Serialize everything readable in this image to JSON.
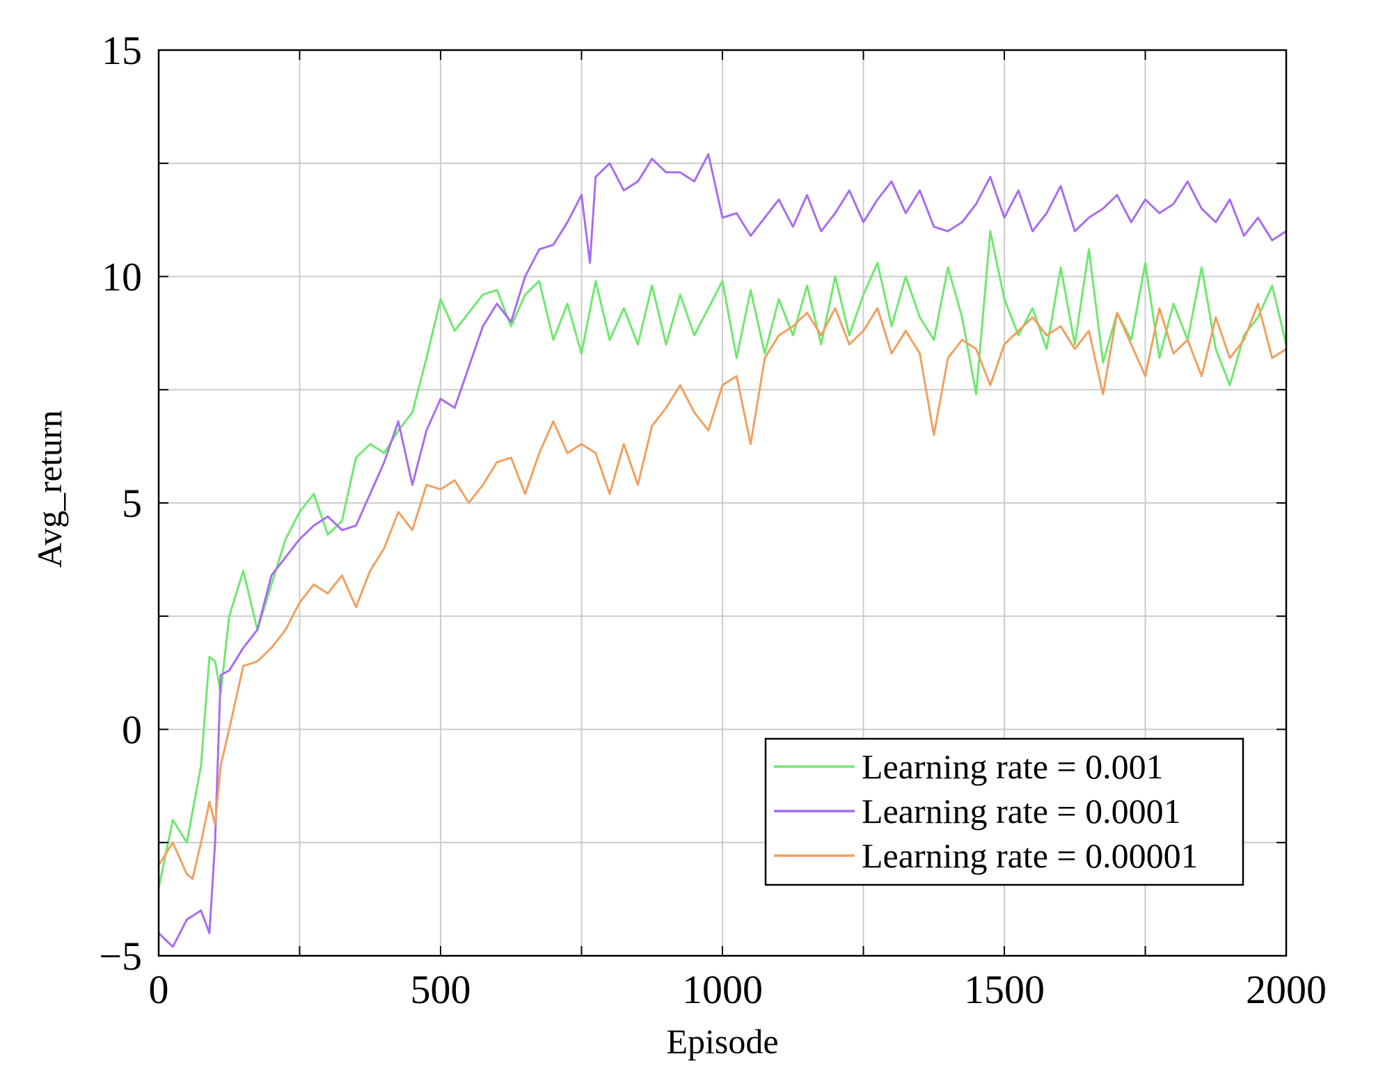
{
  "chart_data": {
    "type": "line",
    "title": "",
    "xlabel": "Episode",
    "ylabel": "Avg_return",
    "xlim": [
      0,
      2000
    ],
    "ylim": [
      -5,
      15
    ],
    "xticks": [
      0,
      500,
      1000,
      1500,
      2000
    ],
    "xtick_labels": [
      "0",
      "500",
      "1000",
      "1500",
      "2000"
    ],
    "yticks": [
      -5,
      0,
      5,
      10,
      15
    ],
    "ytick_labels": [
      "−5",
      "0",
      "5",
      "10",
      "15"
    ],
    "grid": true,
    "legend_position": "bottom-right",
    "series": [
      {
        "name": "Learning rate = 0.001",
        "color": "#6ee86e",
        "x": [
          0,
          25,
          50,
          75,
          90,
          100,
          110,
          125,
          150,
          175,
          200,
          225,
          250,
          275,
          300,
          325,
          350,
          375,
          400,
          425,
          450,
          475,
          500,
          525,
          550,
          575,
          600,
          625,
          650,
          675,
          700,
          725,
          750,
          775,
          800,
          825,
          850,
          875,
          900,
          925,
          950,
          975,
          1000,
          1025,
          1050,
          1075,
          1100,
          1125,
          1150,
          1175,
          1200,
          1225,
          1250,
          1275,
          1300,
          1325,
          1350,
          1375,
          1400,
          1425,
          1450,
          1475,
          1500,
          1525,
          1550,
          1575,
          1600,
          1625,
          1650,
          1675,
          1700,
          1725,
          1750,
          1775,
          1800,
          1825,
          1850,
          1875,
          1900,
          1925,
          1950,
          1975,
          2000
        ],
        "y": [
          -3.5,
          -2,
          -2.5,
          -0.8,
          1.6,
          1.5,
          0.8,
          2.5,
          3.5,
          2.2,
          3.2,
          4.2,
          4.8,
          5.2,
          4.3,
          4.6,
          6,
          6.3,
          6.1,
          6.6,
          7,
          8.2,
          9.5,
          8.8,
          9.2,
          9.6,
          9.7,
          8.9,
          9.6,
          9.9,
          8.6,
          9.4,
          8.3,
          9.9,
          8.6,
          9.3,
          8.5,
          9.8,
          8.5,
          9.6,
          8.7,
          9.3,
          9.9,
          8.2,
          9.7,
          8.3,
          9.5,
          8.7,
          9.8,
          8.5,
          10,
          8.7,
          9.6,
          10.3,
          8.9,
          10,
          9.1,
          8.6,
          10.2,
          9.1,
          7.4,
          11,
          9.5,
          8.7,
          9.3,
          8.4,
          10.2,
          8.5,
          10.6,
          8.1,
          9.2,
          8.6,
          10.3,
          8.2,
          9.4,
          8.6,
          10.2,
          8.4,
          7.6,
          8.7,
          9.1,
          9.8,
          8.5
        ]
      },
      {
        "name": "Learning rate = 0.0001",
        "color": "#a86cf0",
        "x": [
          0,
          25,
          50,
          75,
          90,
          100,
          110,
          125,
          150,
          175,
          200,
          225,
          250,
          275,
          300,
          325,
          350,
          375,
          400,
          425,
          450,
          475,
          500,
          525,
          550,
          575,
          600,
          625,
          650,
          675,
          700,
          725,
          750,
          765,
          775,
          800,
          825,
          850,
          875,
          900,
          925,
          950,
          975,
          1000,
          1025,
          1050,
          1075,
          1100,
          1125,
          1150,
          1175,
          1200,
          1225,
          1250,
          1275,
          1300,
          1325,
          1350,
          1375,
          1400,
          1425,
          1450,
          1475,
          1500,
          1525,
          1550,
          1575,
          1600,
          1625,
          1650,
          1675,
          1700,
          1725,
          1750,
          1775,
          1800,
          1825,
          1850,
          1875,
          1900,
          1925,
          1950,
          1975,
          2000
        ],
        "y": [
          -4.5,
          -4.8,
          -4.2,
          -4,
          -4.5,
          -2.5,
          1.2,
          1.3,
          1.8,
          2.2,
          3.4,
          3.8,
          4.2,
          4.5,
          4.7,
          4.4,
          4.5,
          5.2,
          5.9,
          6.8,
          5.4,
          6.6,
          7.3,
          7.1,
          8,
          8.9,
          9.4,
          9,
          10,
          10.6,
          10.7,
          11.2,
          11.8,
          10.3,
          12.2,
          12.5,
          11.9,
          12.1,
          12.6,
          12.3,
          12.3,
          12.1,
          12.7,
          11.3,
          11.4,
          10.9,
          11.3,
          11.7,
          11.1,
          11.8,
          11,
          11.4,
          11.9,
          11.2,
          11.7,
          12.1,
          11.4,
          11.9,
          11.1,
          11,
          11.2,
          11.6,
          12.2,
          11.3,
          11.9,
          11,
          11.4,
          12,
          11,
          11.3,
          11.5,
          11.8,
          11.2,
          11.7,
          11.4,
          11.6,
          12.1,
          11.5,
          11.2,
          11.7,
          10.9,
          11.3,
          10.8,
          11
        ]
      },
      {
        "name": "Learning rate = 0.00001",
        "color": "#f0a060",
        "x": [
          0,
          25,
          50,
          60,
          75,
          90,
          100,
          110,
          125,
          150,
          175,
          200,
          225,
          250,
          275,
          300,
          325,
          350,
          375,
          400,
          425,
          450,
          475,
          500,
          525,
          550,
          575,
          600,
          625,
          650,
          675,
          700,
          725,
          750,
          775,
          800,
          825,
          850,
          875,
          900,
          925,
          950,
          975,
          1000,
          1025,
          1050,
          1075,
          1100,
          1125,
          1150,
          1175,
          1200,
          1225,
          1250,
          1275,
          1300,
          1325,
          1350,
          1375,
          1400,
          1425,
          1450,
          1475,
          1500,
          1525,
          1550,
          1575,
          1600,
          1625,
          1650,
          1675,
          1700,
          1725,
          1750,
          1775,
          1800,
          1825,
          1850,
          1875,
          1900,
          1925,
          1950,
          1975,
          2000
        ],
        "y": [
          -3,
          -2.5,
          -3.2,
          -3.3,
          -2.5,
          -1.6,
          -2.1,
          -0.8,
          0,
          1.4,
          1.5,
          1.8,
          2.2,
          2.8,
          3.2,
          3,
          3.4,
          2.7,
          3.5,
          4,
          4.8,
          4.4,
          5.4,
          5.3,
          5.5,
          5,
          5.4,
          5.9,
          6,
          5.2,
          6.1,
          6.8,
          6.1,
          6.3,
          6.1,
          5.2,
          6.3,
          5.4,
          6.7,
          7.1,
          7.6,
          7,
          6.6,
          7.6,
          7.8,
          6.3,
          8.2,
          8.7,
          8.9,
          9.2,
          8.7,
          9.3,
          8.5,
          8.8,
          9.3,
          8.3,
          8.8,
          8.3,
          6.5,
          8.2,
          8.6,
          8.4,
          7.6,
          8.5,
          8.8,
          9.1,
          8.7,
          8.9,
          8.4,
          8.8,
          7.4,
          9.2,
          8.5,
          7.8,
          9.3,
          8.3,
          8.6,
          7.8,
          9.1,
          8.2,
          8.6,
          9.4,
          8.2,
          8.4
        ]
      }
    ]
  }
}
